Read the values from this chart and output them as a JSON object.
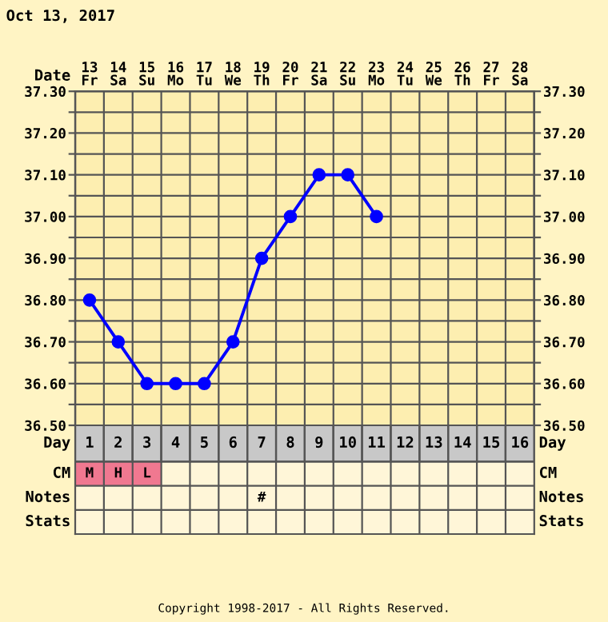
{
  "chart_data": [
    {
      "type": "line",
      "title": "Oct 13, 2017",
      "xlabel": "Date",
      "categories": [
        "13\nFr",
        "14\nSa",
        "15\nSu",
        "16\nMo",
        "17\nTu",
        "18\nWe",
        "19\nTh",
        "20\nFr",
        "21\nSa",
        "22\nSu",
        "23\nMo",
        "24\nTu",
        "25\nWe",
        "26\nTh",
        "27\nFr",
        "28\nSa"
      ],
      "series": [
        {
          "color": "#0000ff",
          "values": [
            36.8,
            36.7,
            36.6,
            36.6,
            36.6,
            36.7,
            36.9,
            37.0,
            37.1,
            37.1,
            37.0,
            null,
            null,
            null,
            null,
            null
          ]
        }
      ],
      "ylim": [
        36.5,
        37.3
      ],
      "yticks": [
        {
          "value": 36.5,
          "label": "36.50"
        },
        {
          "value": 36.55,
          "label": null
        },
        {
          "value": 36.6,
          "label": "36.60"
        },
        {
          "value": 36.65,
          "label": null
        },
        {
          "value": 36.7,
          "label": "36.70"
        },
        {
          "value": 36.75,
          "label": null
        },
        {
          "value": 36.8,
          "label": "36.80"
        },
        {
          "value": 36.85,
          "label": null
        },
        {
          "value": 36.9,
          "label": "36.90"
        },
        {
          "value": 36.95,
          "label": null
        },
        {
          "value": 37.0,
          "label": "37.00"
        },
        {
          "value": 37.05,
          "label": null
        },
        {
          "value": 37.1,
          "label": "37.10"
        },
        {
          "value": 37.15,
          "label": null
        },
        {
          "value": 37.2,
          "label": "37.20"
        },
        {
          "value": 37.25,
          "label": null
        },
        {
          "value": 37.3,
          "label": "37.30"
        }
      ],
      "y2lim": [
        36.5,
        37.3
      ],
      "y2ticks": [
        {
          "value": 36.5,
          "label": "36.50"
        },
        {
          "value": 36.55,
          "label": null
        },
        {
          "value": 36.6,
          "label": "36.60"
        },
        {
          "value": 36.65,
          "label": null
        },
        {
          "value": 36.7,
          "label": "36.70"
        },
        {
          "value": 36.75,
          "label": null
        },
        {
          "value": 36.8,
          "label": "36.80"
        },
        {
          "value": 36.85,
          "label": null
        },
        {
          "value": 36.9,
          "label": "36.90"
        },
        {
          "value": 36.95,
          "label": null
        },
        {
          "value": 37.0,
          "label": "37.00"
        },
        {
          "value": 37.05,
          "label": null
        },
        {
          "value": 37.1,
          "label": "37.10"
        },
        {
          "value": 37.15,
          "label": null
        },
        {
          "value": 37.2,
          "label": "37.20"
        },
        {
          "value": 37.25,
          "label": null
        },
        {
          "value": 37.3,
          "label": "37.30"
        }
      ],
      "grid": true,
      "marker": "circle",
      "line_style": "solid"
    },
    {
      "type": "heatmap",
      "xlabel": "Day",
      "grid": true,
      "categories": [
        "1",
        "2",
        "3",
        "4",
        "5",
        "6",
        "7",
        "8",
        "9",
        "10",
        "11",
        "12",
        "13",
        "14",
        "15",
        "16"
      ],
      "y_categories": [
        "CM",
        "Notes",
        "Stats"
      ],
      "y2_categories": [
        "CM",
        "Notes",
        "Stats"
      ],
      "cells": [
        [
          null,
          null,
          null,
          null,
          null,
          null,
          null,
          null,
          null,
          null,
          null,
          null,
          null,
          null,
          null,
          null
        ],
        [
          null,
          null,
          null,
          null,
          null,
          null,
          null,
          null,
          null,
          null,
          null,
          null,
          null,
          null,
          null,
          null
        ],
        [
          null,
          null,
          null,
          null,
          null,
          null,
          null,
          null,
          null,
          null,
          null,
          null,
          null,
          null,
          null,
          null
        ]
      ],
      "cell_labels": [
        [
          "M",
          "H",
          "L",
          null,
          null,
          null,
          null,
          null,
          null,
          null,
          null,
          null,
          null,
          null,
          null,
          null
        ],
        [
          null,
          null,
          null,
          null,
          null,
          null,
          "#",
          null,
          null,
          null,
          null,
          null,
          null,
          null,
          null,
          null
        ],
        [
          null,
          null,
          null,
          null,
          null,
          null,
          null,
          null,
          null,
          null,
          null,
          null,
          null,
          null,
          null,
          null
        ]
      ],
      "colors": [
        [
          "#f07890",
          "#f07890",
          "#f07890",
          null,
          null,
          null,
          null,
          null,
          null,
          null,
          null,
          null,
          null,
          null,
          null,
          null
        ],
        [
          null,
          null,
          null,
          null,
          null,
          null,
          null,
          null,
          null,
          null,
          null,
          null,
          null,
          null,
          null,
          null
        ],
        [
          null,
          null,
          null,
          null,
          null,
          null,
          null,
          null,
          null,
          null,
          null,
          null,
          null,
          null,
          null,
          null
        ]
      ],
      "annotations": [
        "Copyright 1998-2017 - All Rights Reserved."
      ]
    }
  ]
}
